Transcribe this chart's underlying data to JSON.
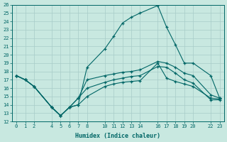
{
  "xlabel": "Humidex (Indice chaleur)",
  "bg_color": "#c8e8e0",
  "grid_color": "#a8ccc8",
  "line_color": "#006666",
  "ylim": [
    12,
    26
  ],
  "xlim": [
    -0.5,
    23.5
  ],
  "yticks": [
    12,
    13,
    14,
    15,
    16,
    17,
    18,
    19,
    20,
    21,
    22,
    23,
    24,
    25,
    26
  ],
  "xtick_vals": [
    0,
    1,
    2,
    4,
    5,
    6,
    7,
    8,
    10,
    11,
    12,
    13,
    14,
    16,
    17,
    18,
    19,
    20,
    22,
    23
  ],
  "xtick_labels": [
    "0",
    "1",
    "2",
    "4",
    "5",
    "6",
    "7",
    "8",
    "10",
    "11",
    "12",
    "13",
    "14",
    "16",
    "17",
    "18",
    "19",
    "20",
    "22",
    "23"
  ],
  "line1_x": [
    0,
    1,
    2,
    4,
    5,
    6,
    7,
    8,
    10,
    11,
    12,
    13,
    14,
    16,
    17,
    18,
    19,
    20,
    22,
    23
  ],
  "line1_y": [
    17.5,
    17.0,
    16.2,
    13.7,
    12.7,
    13.7,
    14.0,
    18.5,
    20.7,
    22.2,
    23.8,
    24.5,
    25.0,
    25.9,
    23.3,
    21.2,
    19.0,
    19.0,
    17.5,
    14.8
  ],
  "line2_x": [
    0,
    1,
    2,
    4,
    5,
    6,
    7,
    8,
    10,
    11,
    12,
    13,
    14,
    16,
    17,
    18,
    19,
    20,
    22,
    23
  ],
  "line2_y": [
    17.5,
    17.0,
    16.2,
    13.7,
    12.7,
    13.7,
    14.0,
    15.0,
    16.2,
    16.5,
    16.7,
    16.8,
    16.9,
    19.0,
    17.2,
    16.8,
    16.5,
    16.2,
    14.8,
    14.7
  ],
  "line3_x": [
    0,
    1,
    2,
    4,
    5,
    6,
    7,
    8,
    10,
    11,
    12,
    13,
    14,
    16,
    17,
    18,
    19,
    20,
    22,
    23
  ],
  "line3_y": [
    17.5,
    17.0,
    16.2,
    13.7,
    12.7,
    13.7,
    14.8,
    17.0,
    17.5,
    17.7,
    17.9,
    18.0,
    18.2,
    19.2,
    19.0,
    18.5,
    17.8,
    17.5,
    15.2,
    14.8
  ],
  "line4_x": [
    0,
    1,
    2,
    4,
    5,
    6,
    7,
    8,
    10,
    11,
    12,
    13,
    14,
    16,
    17,
    18,
    19,
    20,
    22,
    23
  ],
  "line4_y": [
    17.5,
    17.0,
    16.2,
    13.7,
    12.7,
    13.7,
    14.8,
    16.0,
    16.7,
    17.0,
    17.2,
    17.4,
    17.5,
    18.6,
    18.5,
    17.8,
    17.0,
    16.6,
    14.6,
    14.6
  ]
}
